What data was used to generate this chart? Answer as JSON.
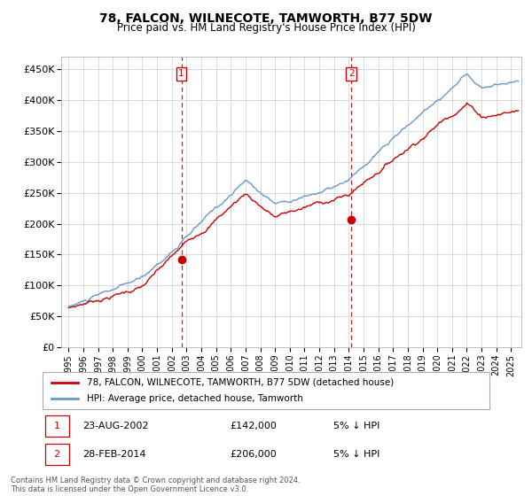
{
  "title": "78, FALCON, WILNECOTE, TAMWORTH, B77 5DW",
  "subtitle": "Price paid vs. HM Land Registry's House Price Index (HPI)",
  "ylabel_ticks": [
    "£0",
    "£50K",
    "£100K",
    "£150K",
    "£200K",
    "£250K",
    "£300K",
    "£350K",
    "£400K",
    "£450K"
  ],
  "ytick_values": [
    0,
    50000,
    100000,
    150000,
    200000,
    250000,
    300000,
    350000,
    400000,
    450000
  ],
  "ylim": [
    0,
    470000
  ],
  "xlim_start": 1994.5,
  "xlim_end": 2025.7,
  "sale1_date": 2002.65,
  "sale1_price": 142000,
  "sale2_date": 2014.17,
  "sale2_price": 206000,
  "vline1_x": 2002.65,
  "vline2_x": 2014.17,
  "legend_line1": "78, FALCON, WILNECOTE, TAMWORTH, B77 5DW (detached house)",
  "legend_line2": "HPI: Average price, detached house, Tamworth",
  "annotation1_label": "1",
  "annotation1_date": "23-AUG-2002",
  "annotation1_price": "£142,000",
  "annotation1_hpi": "5% ↓ HPI",
  "annotation2_label": "2",
  "annotation2_date": "28-FEB-2014",
  "annotation2_price": "£206,000",
  "annotation2_hpi": "5% ↓ HPI",
  "footer": "Contains HM Land Registry data © Crown copyright and database right 2024.\nThis data is licensed under the Open Government Licence v3.0.",
  "hpi_color": "#6699cc",
  "property_color": "#cc0000",
  "vline_color": "#cc0000",
  "background_color": "#ffffff",
  "grid_color": "#cccccc"
}
